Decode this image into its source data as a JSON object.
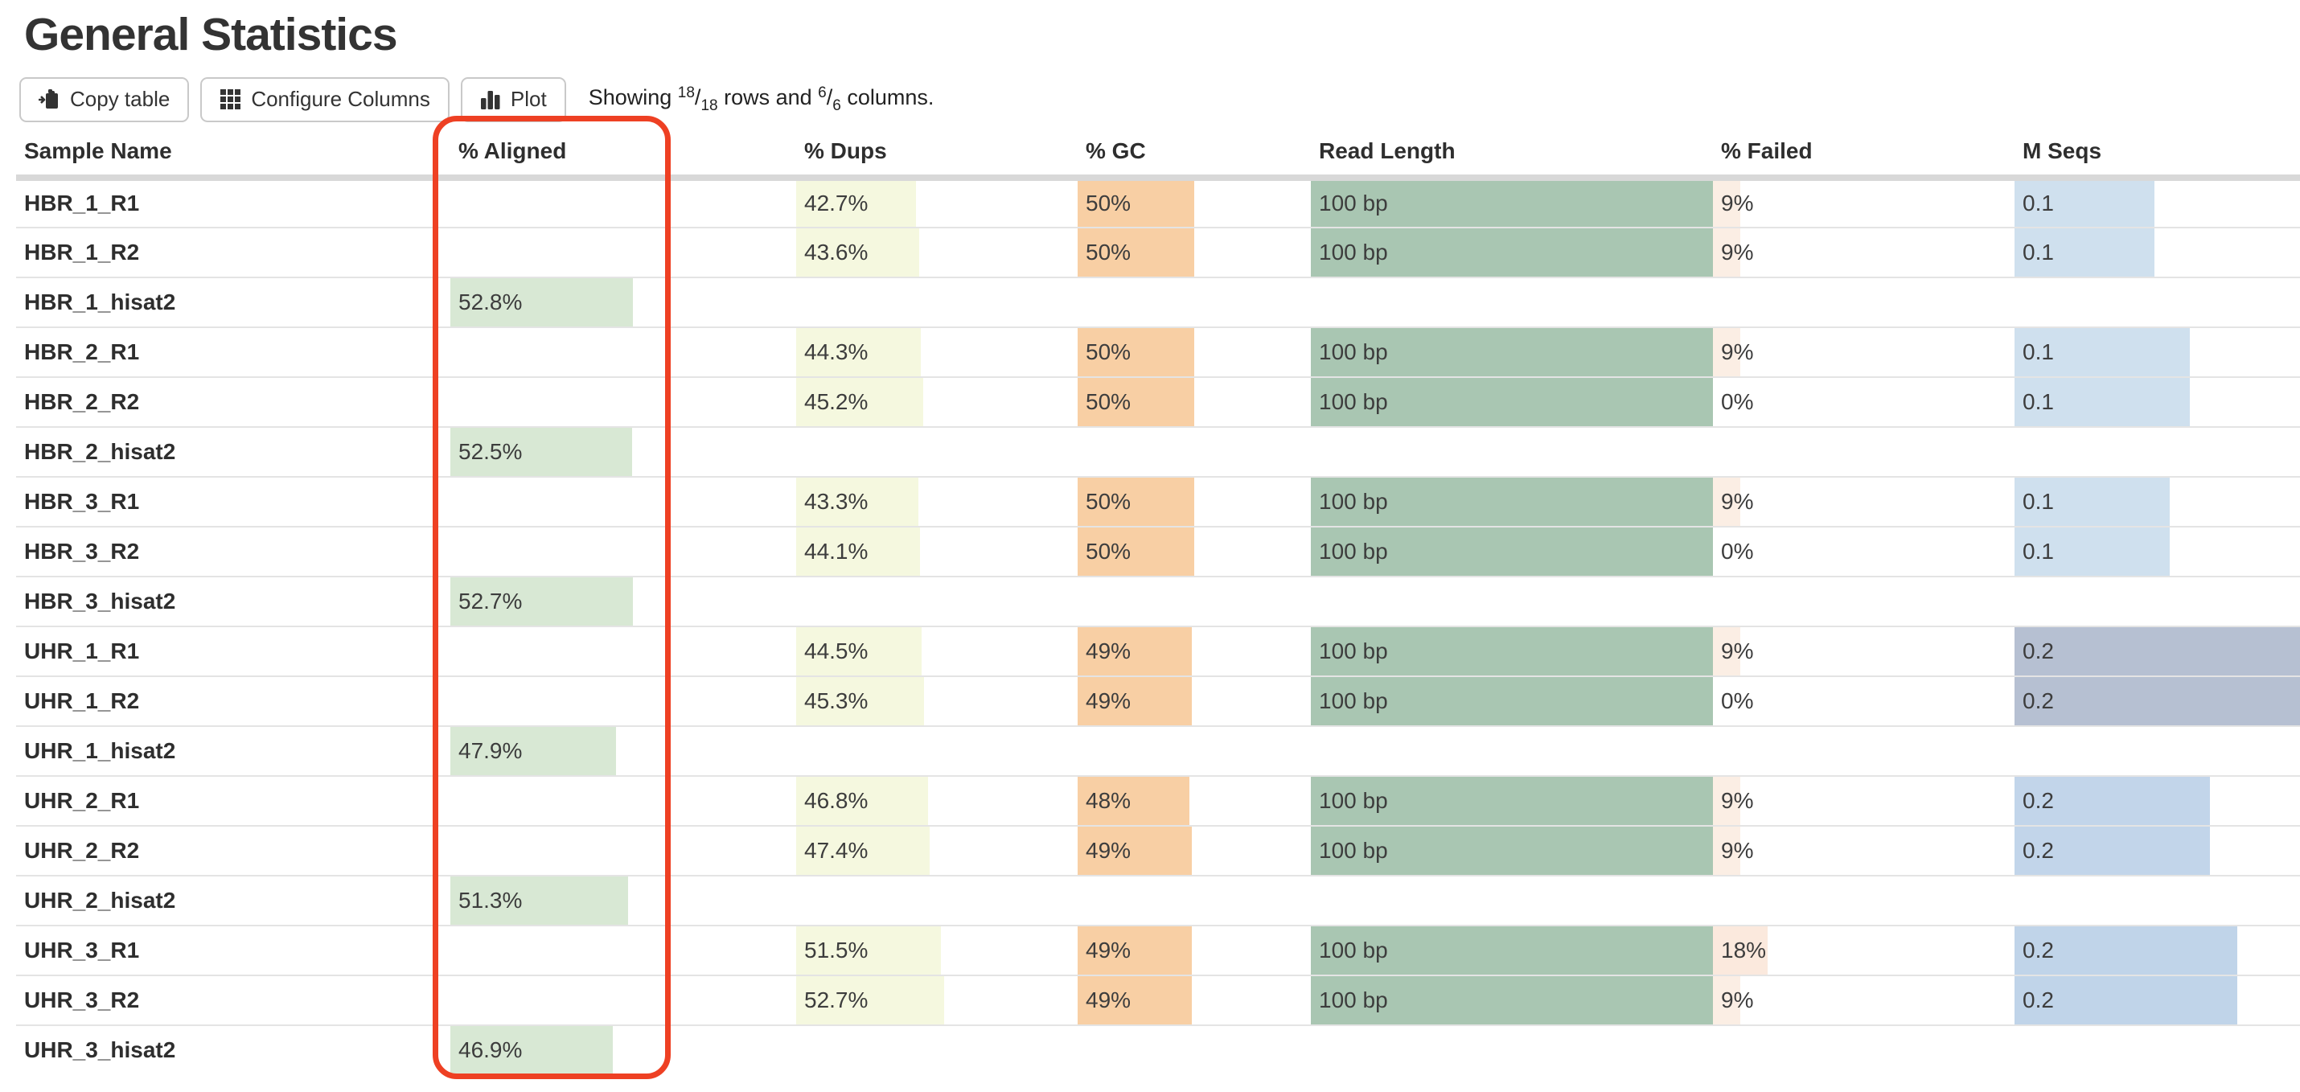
{
  "page": {
    "title": "General Statistics"
  },
  "toolbar": {
    "copy_label": "Copy table",
    "configure_label": "Configure Columns",
    "plot_label": "Plot",
    "showing": {
      "word": "Showing",
      "rows_num": "18",
      "rows_den": "18",
      "rows_word": "rows and",
      "cols_num": "6",
      "cols_den": "6",
      "cols_word": "columns."
    },
    "icons": [
      "clipboard-icon",
      "grid-icon",
      "bar-chart-icon"
    ]
  },
  "annotation": {
    "highlighted_column": "% Aligned",
    "color": "#ee4023"
  },
  "colors": {
    "aligned_bar": "#d8e8d4",
    "dups_bar": "#f5f8df",
    "gc_bar": "#f8cfa4",
    "readlen_bar": "#a9c6b2",
    "failed_bar": "#fbeee4",
    "mseqs_hbr": "#cfe0ee",
    "mseqs_uhr1": "#b6c0d2",
    "mseqs_uhr2": "#c2d5ea",
    "mseqs_uhr3": "#c0d4e9",
    "header_band": "#d8d8d8"
  },
  "table": {
    "columns": [
      {
        "key": "sample",
        "label": "Sample Name"
      },
      {
        "key": "aligned",
        "label": "% Aligned"
      },
      {
        "key": "dups",
        "label": "% Dups"
      },
      {
        "key": "gc",
        "label": "% GC"
      },
      {
        "key": "readlen",
        "label": "Read Length"
      },
      {
        "key": "failed",
        "label": "% Failed"
      },
      {
        "key": "mseqs",
        "label": "M Seqs"
      }
    ],
    "rows": [
      {
        "sample": "HBR_1_R1",
        "cells": [
          null,
          {
            "text": "42.7%",
            "frac": 0.427,
            "color": "#f5f8df"
          },
          {
            "text": "50%",
            "frac": 0.5,
            "color": "#f8cfa4"
          },
          {
            "text": "100 bp",
            "frac": 1.0,
            "color": "#a9c6b2"
          },
          {
            "text": "9%",
            "frac": 0.09,
            "color": "#fbeee4"
          },
          {
            "text": "0.1",
            "frac": 0.49,
            "color": "#cfe0ee"
          }
        ]
      },
      {
        "sample": "HBR_1_R2",
        "cells": [
          null,
          {
            "text": "43.6%",
            "frac": 0.436,
            "color": "#f5f8df"
          },
          {
            "text": "50%",
            "frac": 0.5,
            "color": "#f8cfa4"
          },
          {
            "text": "100 bp",
            "frac": 1.0,
            "color": "#a9c6b2"
          },
          {
            "text": "9%",
            "frac": 0.09,
            "color": "#fbeee4"
          },
          {
            "text": "0.1",
            "frac": 0.49,
            "color": "#cfe0ee"
          }
        ]
      },
      {
        "sample": "HBR_1_hisat2",
        "cells": [
          {
            "text": "52.8%",
            "frac": 0.528,
            "color": "#d8e8d4"
          },
          null,
          null,
          null,
          null,
          null
        ]
      },
      {
        "sample": "HBR_2_R1",
        "cells": [
          null,
          {
            "text": "44.3%",
            "frac": 0.443,
            "color": "#f5f8df"
          },
          {
            "text": "50%",
            "frac": 0.5,
            "color": "#f8cfa4"
          },
          {
            "text": "100 bp",
            "frac": 1.0,
            "color": "#a9c6b2"
          },
          {
            "text": "9%",
            "frac": 0.09,
            "color": "#fbeee4"
          },
          {
            "text": "0.1",
            "frac": 0.615,
            "color": "#cfe0ee"
          }
        ]
      },
      {
        "sample": "HBR_2_R2",
        "cells": [
          null,
          {
            "text": "45.2%",
            "frac": 0.452,
            "color": "#f5f8df"
          },
          {
            "text": "50%",
            "frac": 0.5,
            "color": "#f8cfa4"
          },
          {
            "text": "100 bp",
            "frac": 1.0,
            "color": "#a9c6b2"
          },
          {
            "text": "0%",
            "frac": 0,
            "color": "#fbeee4"
          },
          {
            "text": "0.1",
            "frac": 0.615,
            "color": "#cfe0ee"
          }
        ]
      },
      {
        "sample": "HBR_2_hisat2",
        "cells": [
          {
            "text": "52.5%",
            "frac": 0.525,
            "color": "#d8e8d4"
          },
          null,
          null,
          null,
          null,
          null
        ]
      },
      {
        "sample": "HBR_3_R1",
        "cells": [
          null,
          {
            "text": "43.3%",
            "frac": 0.433,
            "color": "#f5f8df"
          },
          {
            "text": "50%",
            "frac": 0.5,
            "color": "#f8cfa4"
          },
          {
            "text": "100 bp",
            "frac": 1.0,
            "color": "#a9c6b2"
          },
          {
            "text": "9%",
            "frac": 0.09,
            "color": "#fbeee4"
          },
          {
            "text": "0.1",
            "frac": 0.545,
            "color": "#cfe0ee"
          }
        ]
      },
      {
        "sample": "HBR_3_R2",
        "cells": [
          null,
          {
            "text": "44.1%",
            "frac": 0.441,
            "color": "#f5f8df"
          },
          {
            "text": "50%",
            "frac": 0.5,
            "color": "#f8cfa4"
          },
          {
            "text": "100 bp",
            "frac": 1.0,
            "color": "#a9c6b2"
          },
          {
            "text": "0%",
            "frac": 0,
            "color": "#fbeee4"
          },
          {
            "text": "0.1",
            "frac": 0.545,
            "color": "#cfe0ee"
          }
        ]
      },
      {
        "sample": "HBR_3_hisat2",
        "cells": [
          {
            "text": "52.7%",
            "frac": 0.527,
            "color": "#d8e8d4"
          },
          null,
          null,
          null,
          null,
          null
        ]
      },
      {
        "sample": "UHR_1_R1",
        "cells": [
          null,
          {
            "text": "44.5%",
            "frac": 0.445,
            "color": "#f5f8df"
          },
          {
            "text": "49%",
            "frac": 0.49,
            "color": "#f8cfa4"
          },
          {
            "text": "100 bp",
            "frac": 1.0,
            "color": "#a9c6b2"
          },
          {
            "text": "9%",
            "frac": 0.09,
            "color": "#fbeee4"
          },
          {
            "text": "0.2",
            "frac": 1.0,
            "color": "#b6c0d2"
          }
        ]
      },
      {
        "sample": "UHR_1_R2",
        "cells": [
          null,
          {
            "text": "45.3%",
            "frac": 0.453,
            "color": "#f5f8df"
          },
          {
            "text": "49%",
            "frac": 0.49,
            "color": "#f8cfa4"
          },
          {
            "text": "100 bp",
            "frac": 1.0,
            "color": "#a9c6b2"
          },
          {
            "text": "0%",
            "frac": 0,
            "color": "#fbeee4"
          },
          {
            "text": "0.2",
            "frac": 1.0,
            "color": "#b6c0d2"
          }
        ]
      },
      {
        "sample": "UHR_1_hisat2",
        "cells": [
          {
            "text": "47.9%",
            "frac": 0.479,
            "color": "#d8e8d4"
          },
          null,
          null,
          null,
          null,
          null
        ]
      },
      {
        "sample": "UHR_2_R1",
        "cells": [
          null,
          {
            "text": "46.8%",
            "frac": 0.468,
            "color": "#f5f8df"
          },
          {
            "text": "48%",
            "frac": 0.48,
            "color": "#f8cfa4"
          },
          {
            "text": "100 bp",
            "frac": 1.0,
            "color": "#a9c6b2"
          },
          {
            "text": "9%",
            "frac": 0.09,
            "color": "#fbeee4"
          },
          {
            "text": "0.2",
            "frac": 0.685,
            "color": "#c2d5ea"
          }
        ]
      },
      {
        "sample": "UHR_2_R2",
        "cells": [
          null,
          {
            "text": "47.4%",
            "frac": 0.474,
            "color": "#f5f8df"
          },
          {
            "text": "49%",
            "frac": 0.49,
            "color": "#f8cfa4"
          },
          {
            "text": "100 bp",
            "frac": 1.0,
            "color": "#a9c6b2"
          },
          {
            "text": "9%",
            "frac": 0.09,
            "color": "#fbeee4"
          },
          {
            "text": "0.2",
            "frac": 0.685,
            "color": "#c2d5ea"
          }
        ]
      },
      {
        "sample": "UHR_2_hisat2",
        "cells": [
          {
            "text": "51.3%",
            "frac": 0.513,
            "color": "#d8e8d4"
          },
          null,
          null,
          null,
          null,
          null
        ]
      },
      {
        "sample": "UHR_3_R1",
        "cells": [
          null,
          {
            "text": "51.5%",
            "frac": 0.515,
            "color": "#f5f8df"
          },
          {
            "text": "49%",
            "frac": 0.49,
            "color": "#f8cfa4"
          },
          {
            "text": "100 bp",
            "frac": 1.0,
            "color": "#a9c6b2"
          },
          {
            "text": "18%",
            "frac": 0.18,
            "color": "#fbe9dd"
          },
          {
            "text": "0.2",
            "frac": 0.78,
            "color": "#c0d4e9"
          }
        ]
      },
      {
        "sample": "UHR_3_R2",
        "cells": [
          null,
          {
            "text": "52.7%",
            "frac": 0.527,
            "color": "#f5f8df"
          },
          {
            "text": "49%",
            "frac": 0.49,
            "color": "#f8cfa4"
          },
          {
            "text": "100 bp",
            "frac": 1.0,
            "color": "#a9c6b2"
          },
          {
            "text": "9%",
            "frac": 0.09,
            "color": "#fbeee4"
          },
          {
            "text": "0.2",
            "frac": 0.78,
            "color": "#c0d4e9"
          }
        ]
      },
      {
        "sample": "UHR_3_hisat2",
        "cells": [
          {
            "text": "46.9%",
            "frac": 0.469,
            "color": "#d8e8d4"
          },
          null,
          null,
          null,
          null,
          null
        ]
      }
    ]
  }
}
